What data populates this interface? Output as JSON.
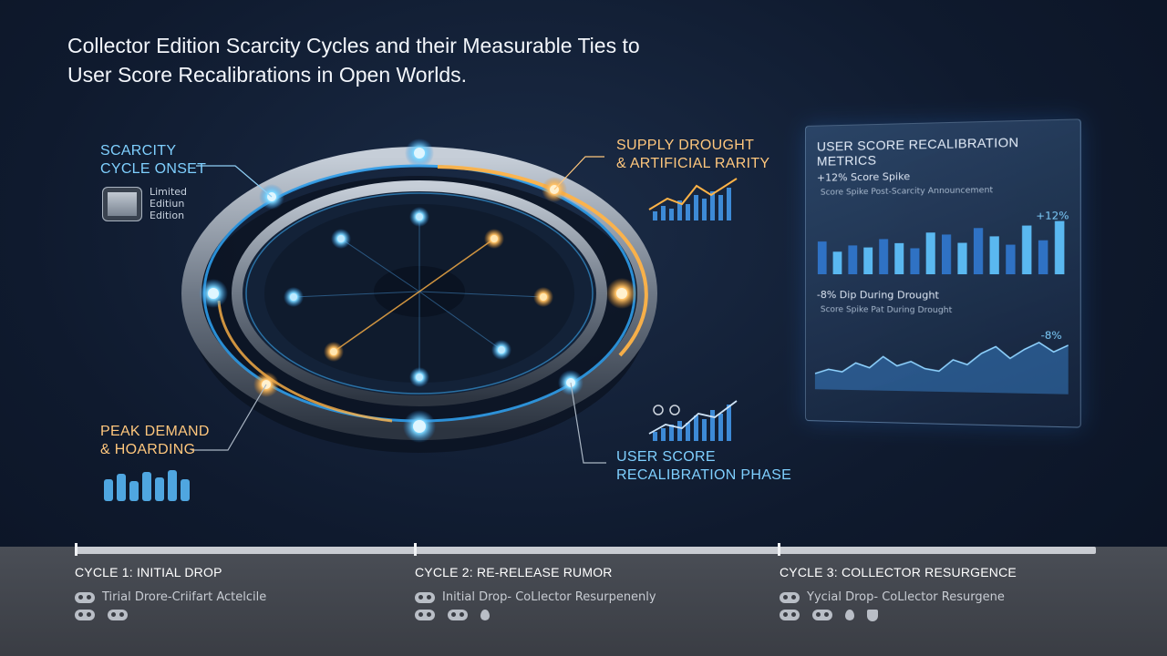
{
  "title": "Collector Edition Scarcity Cycles and their Measurable Ties to User Score Recalibrations in Open Worlds.",
  "callouts": {
    "onset": [
      "SCARCITY",
      "CYCLE ONSET"
    ],
    "drought": [
      "SUPPLY DROUGHT",
      "& ARTIFICIAL RARITY"
    ],
    "peak": [
      "PEAK DEMAND",
      "& HOARDING"
    ],
    "recal": [
      "USER SCORE",
      "RECALIBRATION PHASE"
    ]
  },
  "edition_badge": [
    "Limited",
    "Editiun",
    "Edition"
  ],
  "panel": {
    "title": "USER SCORE RECALIBRATION METRICS",
    "spike_heading": "+12% Score Spike",
    "spike_sub": "Score Spike Post-Scarcity Announcement",
    "spike_delta": "+12%",
    "dip_heading": "-8% Dip During Drought",
    "dip_sub": "Score Spike Pat During Drought",
    "dip_delta": "-8%"
  },
  "chart_data": [
    {
      "type": "bar",
      "values": [
        32,
        22,
        28,
        26,
        34,
        30,
        25,
        40,
        38,
        30,
        44,
        36,
        28,
        46,
        32,
        50
      ],
      "title": "+12% Score Spike"
    },
    {
      "type": "area",
      "values": [
        14,
        18,
        16,
        24,
        20,
        30,
        22,
        26,
        20,
        18,
        28,
        24,
        34,
        40,
        30,
        38,
        44,
        36,
        42
      ],
      "title": "-8% Dip During Drought"
    }
  ],
  "timeline": [
    {
      "label": "CYCLE 1: INITIAL DROP",
      "detail": "Tirial Drore-Criifart Actelcile"
    },
    {
      "label": "CYCLE 2: RE-RELEASE RUMOR",
      "detail": "Initial Drop- CoLlector Resurpenenly"
    },
    {
      "label": "CYCLE 3: COLLECTOR RESURGENCE",
      "detail": "Yycial Drop- CoLlector Resurgene"
    }
  ],
  "colors": {
    "blue": "#4fc3ff",
    "orange": "#ffb347",
    "panel": "#243b5c"
  }
}
